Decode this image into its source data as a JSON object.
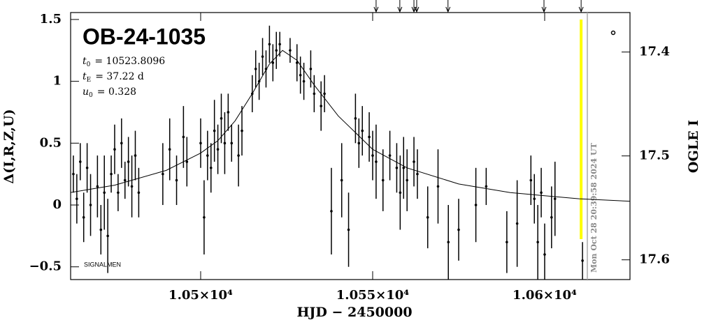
{
  "chart_data": {
    "type": "scatter",
    "title": "OB-24-1035",
    "params": [
      {
        "symbol": "t",
        "subscript": "0",
        "value": "= 10523.8096"
      },
      {
        "symbol": "t",
        "subscript": "E",
        "value": "= 37.22 d"
      },
      {
        "symbol": "u",
        "subscript": "0",
        "value": "= 0.328"
      }
    ],
    "x_label": "HJD − 2450000",
    "y_label": "Δ(I,R,Z,U)",
    "y2_label": "OGLE I",
    "annotation": "SIGNALMEN",
    "timestamp": "Mon Oct 28 20:39:58 2024 UT",
    "xlim": [
      10462.2,
      10624.8
    ],
    "ylim": [
      -0.603,
      1.556
    ],
    "y2lim": [
      17.619,
      17.362
    ],
    "xticks": [
      {
        "value": 10500,
        "label": "1.05×10⁴"
      },
      {
        "value": 10550,
        "label": "1.055×10⁴"
      },
      {
        "value": 10600,
        "label": "1.06×10⁴"
      }
    ],
    "yticks": [
      1.5,
      1,
      0.5,
      0,
      {
        "value": -0.5,
        "label": "−0.5"
      }
    ],
    "y2ticks": [
      17.4,
      17.5,
      17.6
    ],
    "color": "#000000",
    "now_color": "#ffff00",
    "now_x": 10610.6,
    "time_x": 10612.4,
    "arrows_x": [
      10551.0,
      10557.9,
      10562.0,
      10562.8,
      10571.9,
      10599.8,
      10610.6
    ],
    "model": {
      "x": [
        10462,
        10475,
        10490,
        10500,
        10505,
        10510,
        10515,
        10520,
        10523.8,
        10528,
        10533,
        10540,
        10550,
        10560,
        10575,
        10590,
        10610,
        10625
      ],
      "y": [
        0.1,
        0.16,
        0.28,
        0.42,
        0.52,
        0.68,
        0.9,
        1.14,
        1.25,
        1.17,
        0.97,
        0.72,
        0.45,
        0.3,
        0.17,
        0.1,
        0.05,
        0.03
      ]
    },
    "points": {
      "x": [
        10463,
        10464,
        10465,
        10466,
        10467,
        10468,
        10470,
        10471,
        10472,
        10473,
        10474,
        10475,
        10476,
        10477,
        10478,
        10479,
        10480,
        10481,
        10482,
        10489,
        10491,
        10493,
        10495,
        10496,
        10500,
        10501,
        10502,
        10503,
        10504,
        10505,
        10506,
        10507,
        10508,
        10509,
        10511,
        10512,
        10515,
        10516,
        10517,
        10518,
        10519,
        10520,
        10521,
        10522,
        10523,
        10526,
        10528,
        10529,
        10530,
        10532,
        10533,
        10535,
        10536,
        10538,
        10541,
        10543,
        10545,
        10546,
        10547,
        10549,
        10550,
        10551,
        10553,
        10555,
        10557,
        10558,
        10559,
        10560,
        10562,
        10563,
        10566,
        10569,
        10572,
        10575,
        10580,
        10583,
        10589,
        10592,
        10596,
        10597,
        10598,
        10599,
        10600,
        10602,
        10603,
        10611
      ],
      "y": [
        0.25,
        0.05,
        0.35,
        -0.1,
        0.3,
        0.0,
        0.15,
        -0.2,
        0.1,
        -0.25,
        0.25,
        0.45,
        0.1,
        0.5,
        0.2,
        0.35,
        0.15,
        0.4,
        0.1,
        0.25,
        0.45,
        0.2,
        0.55,
        0.35,
        0.5,
        -0.1,
        0.4,
        0.3,
        0.6,
        0.45,
        0.7,
        0.5,
        0.75,
        0.5,
        0.4,
        0.6,
        0.9,
        1.1,
        1.0,
        1.2,
        1.1,
        1.3,
        1.15,
        1.25,
        1.3,
        1.25,
        1.15,
        1.05,
        1.0,
        1.1,
        0.9,
        0.8,
        0.9,
        -0.05,
        0.2,
        -0.2,
        0.7,
        0.5,
        0.6,
        0.55,
        0.4,
        0.35,
        0.2,
        0.4,
        0.3,
        0.1,
        0.3,
        0.2,
        0.35,
        0.25,
        -0.1,
        0.15,
        -0.3,
        -0.2,
        0.0,
        0.15,
        -0.3,
        -0.15,
        0.2,
        0.05,
        -0.3,
        0.1,
        -0.4,
        -0.1,
        0.05,
        -0.45
      ],
      "err": [
        0.15,
        0.2,
        0.15,
        0.2,
        0.2,
        0.25,
        0.25,
        0.2,
        0.3,
        0.3,
        0.15,
        0.2,
        0.15,
        0.2,
        0.15,
        0.2,
        0.25,
        0.2,
        0.2,
        0.25,
        0.25,
        0.2,
        0.25,
        0.2,
        0.2,
        0.3,
        0.2,
        0.2,
        0.25,
        0.2,
        0.2,
        0.25,
        0.15,
        0.15,
        0.25,
        0.2,
        0.15,
        0.15,
        0.15,
        0.15,
        0.15,
        0.15,
        0.15,
        0.15,
        0.1,
        0.1,
        0.15,
        0.15,
        0.15,
        0.15,
        0.15,
        0.2,
        0.15,
        0.35,
        0.3,
        0.3,
        0.2,
        0.2,
        0.2,
        0.2,
        0.2,
        0.3,
        0.25,
        0.2,
        0.2,
        0.3,
        0.25,
        0.25,
        0.2,
        0.2,
        0.25,
        0.3,
        0.3,
        0.25,
        0.3,
        0.15,
        0.25,
        0.35,
        0.2,
        0.2,
        0.3,
        0.2,
        0.25,
        0.25,
        0.3,
        0.15
      ]
    }
  }
}
